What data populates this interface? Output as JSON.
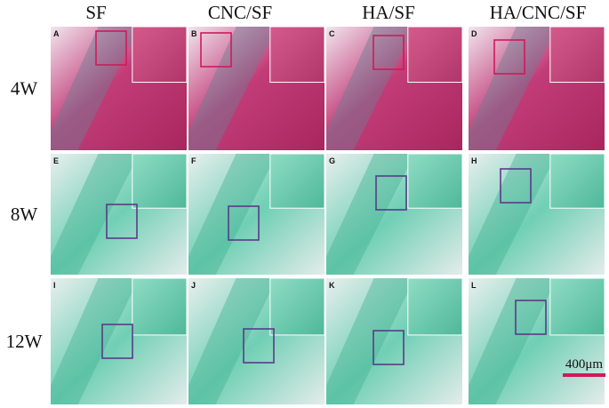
{
  "columns": [
    "SF",
    "CNC/SF",
    "HA/SF",
    "HA/CNC/SF"
  ],
  "rows": [
    "4W",
    "8W",
    "12W"
  ],
  "panels": [
    [
      "A",
      "B",
      "C",
      "D"
    ],
    [
      "E",
      "F",
      "G",
      "H"
    ],
    [
      "I",
      "J",
      "K",
      "L"
    ]
  ],
  "scale_bar": "400μm"
}
